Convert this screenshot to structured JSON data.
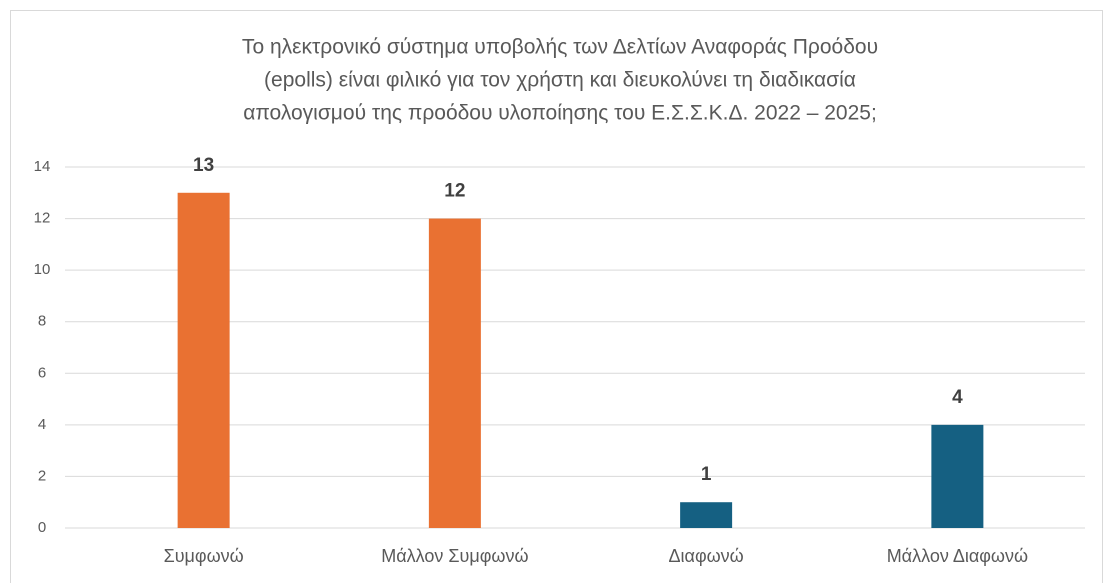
{
  "chart_data": {
    "type": "bar",
    "title": [
      "Το ηλεκτρονικό σύστημα υποβολής των Δελτίων Αναφοράς Προόδου",
      "(epolls) είναι φιλικό για τον χρήστη και διευκολύνει τη διαδικασία",
      "απολογισμού της προόδου υλοποίησης του Ε.Σ.Σ.Κ.Δ. 2022 – 2025;"
    ],
    "categories": [
      "Συμφωνώ",
      "Μάλλον Συμφωνώ",
      "Διαφωνώ",
      "Μάλλον Διαφωνώ"
    ],
    "values": [
      13,
      12,
      1,
      4
    ],
    "colors": [
      "#e97132",
      "#e97132",
      "#156082",
      "#156082"
    ],
    "ylim": [
      0,
      14
    ],
    "yticks": [
      0,
      2,
      4,
      6,
      8,
      10,
      12,
      14
    ],
    "grid": true
  }
}
